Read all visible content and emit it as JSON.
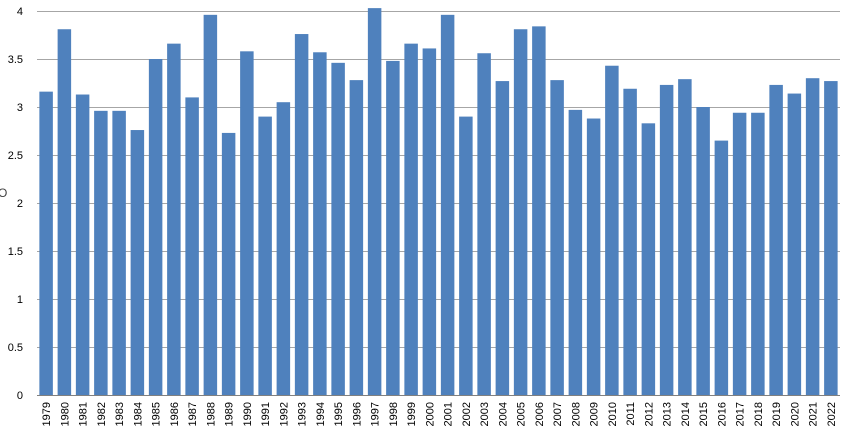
{
  "chart_data": {
    "type": "bar",
    "title": "",
    "xlabel": "",
    "ylabel": "",
    "ylim": [
      0,
      4
    ],
    "yticks": [
      0,
      0.5,
      1,
      1.5,
      2,
      2.5,
      3,
      3.5,
      4
    ],
    "grid": true,
    "legend": "none",
    "bar_color": "#4f81bd",
    "grid_color": "#a6a6a6",
    "categories": [
      "1979",
      "1980",
      "1981",
      "1982",
      "1983",
      "1984",
      "1985",
      "1986",
      "1987",
      "1988",
      "1989",
      "1990",
      "1991",
      "1992",
      "1993",
      "1994",
      "1995",
      "1996",
      "1997",
      "1998",
      "1999",
      "2000",
      "2001",
      "2002",
      "2003",
      "2004",
      "2005",
      "2006",
      "2007",
      "2008",
      "2009",
      "2010",
      "2011",
      "2012",
      "2013",
      "2014",
      "2015",
      "2016",
      "2017",
      "2018",
      "2019",
      "2020",
      "2021",
      "2022"
    ],
    "values": [
      3.16,
      3.81,
      3.13,
      2.96,
      2.96,
      2.76,
      3.5,
      3.66,
      3.1,
      3.96,
      2.73,
      3.58,
      2.9,
      3.05,
      3.76,
      3.57,
      3.46,
      3.28,
      4.03,
      3.48,
      3.66,
      3.61,
      3.96,
      2.9,
      3.56,
      3.27,
      3.81,
      3.84,
      3.28,
      2.97,
      2.88,
      3.43,
      3.19,
      2.83,
      3.23,
      3.29,
      3.0,
      2.65,
      2.94,
      2.94,
      3.23,
      3.14,
      3.3,
      3.27
    ]
  },
  "side_text": "O"
}
